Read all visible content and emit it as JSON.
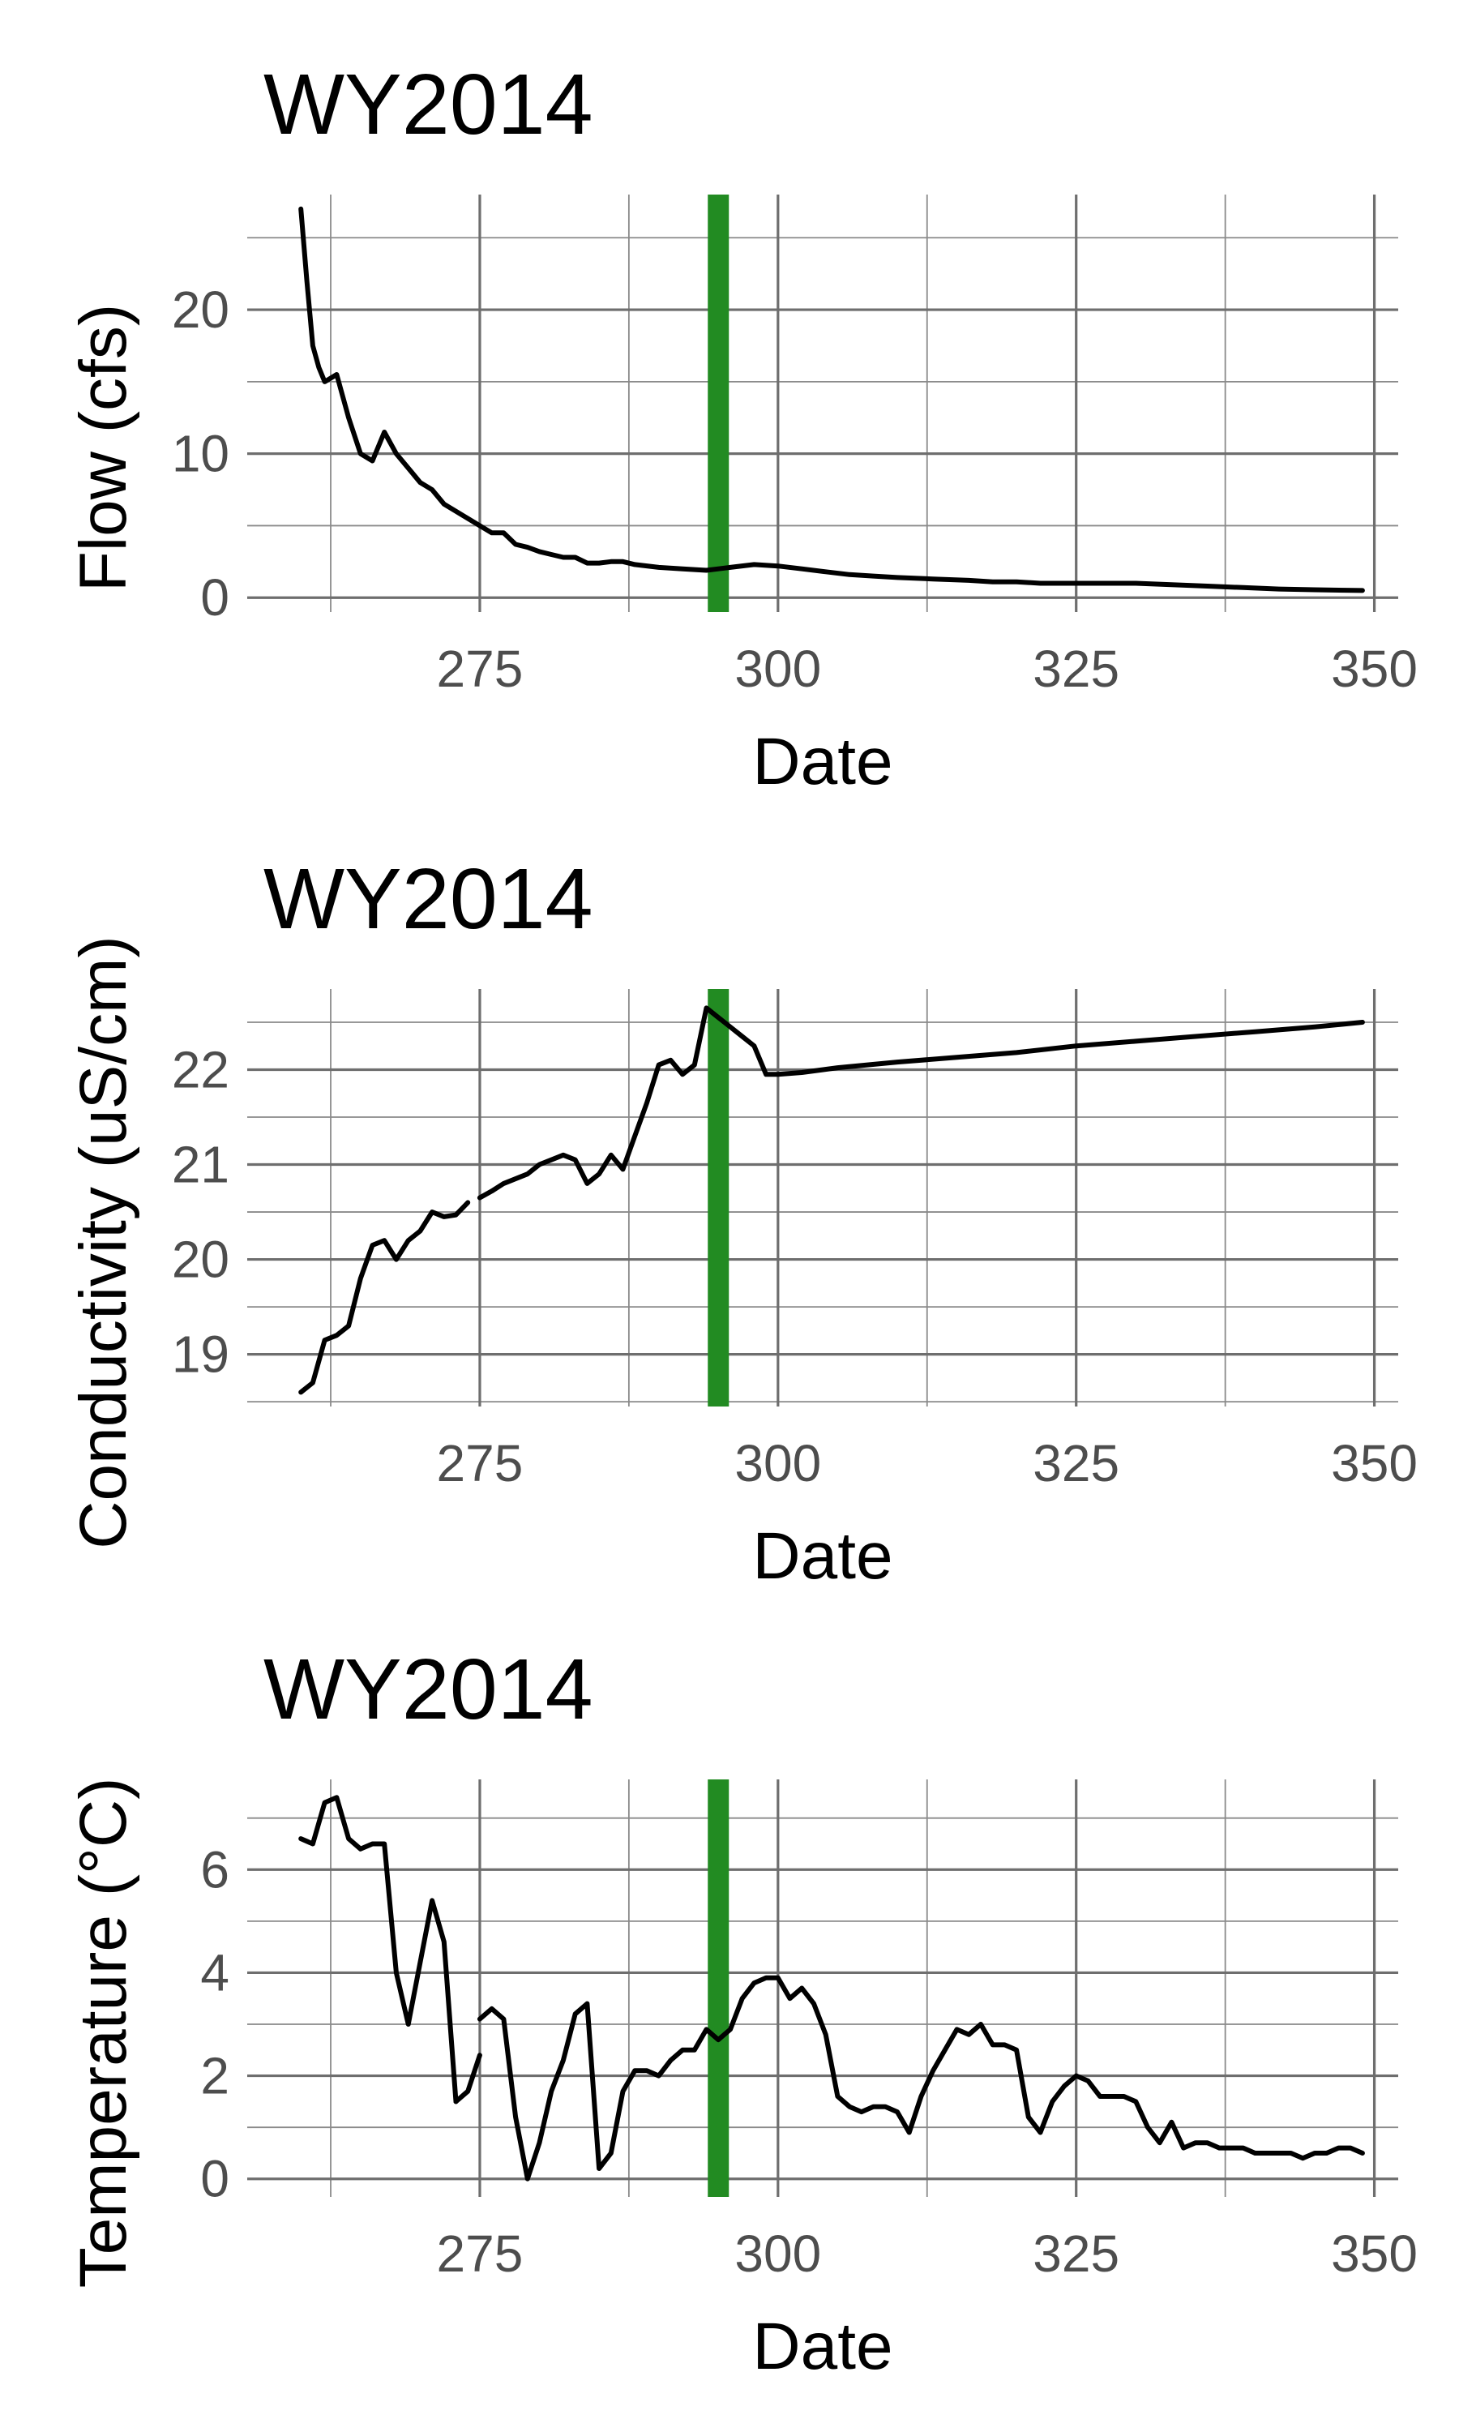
{
  "chart_data": [
    {
      "type": "line",
      "title": "WY2014",
      "xlabel": "Date",
      "ylabel": "Flow (cfs)",
      "xlim": [
        255.5,
        352
      ],
      "ylim": [
        -1,
        28
      ],
      "xticks": [
        275,
        300,
        325,
        350
      ],
      "yticks": [
        0,
        10,
        20
      ],
      "grid": true,
      "highlight": {
        "x": 295,
        "color": "#228B22"
      },
      "line_color": "#000000",
      "series": [
        {
          "segments": [
            {
              "x": [
                260,
                260.5,
                261,
                261.5,
                262,
                263,
                264,
                265,
                266,
                267,
                268,
                269,
                270,
                271,
                272,
                273,
                274,
                275,
                276,
                277,
                278,
                279,
                280,
                281,
                282,
                283,
                284,
                285,
                286,
                287,
                288,
                290,
                292,
                294,
                296,
                298,
                300,
                302,
                304,
                306,
                308,
                310,
                313,
                316,
                318,
                320,
                322,
                325,
                328,
                330,
                333,
                336,
                339,
                342,
                345,
                349
              ],
              "y": [
                27,
                22,
                17.5,
                16,
                15,
                15.5,
                12.5,
                10,
                9.5,
                11.5,
                10,
                9,
                8,
                7.5,
                6.5,
                6,
                5.5,
                5,
                4.5,
                4.5,
                3.7,
                3.5,
                3.2,
                3,
                2.8,
                2.8,
                2.4,
                2.4,
                2.5,
                2.5,
                2.3,
                2.1,
                2,
                1.9,
                2.1,
                2.3,
                2.2,
                2,
                1.8,
                1.6,
                1.5,
                1.4,
                1.3,
                1.2,
                1.1,
                1.1,
                1.0,
                1.0,
                1.0,
                1.0,
                0.9,
                0.8,
                0.7,
                0.6,
                0.55,
                0.5
              ]
            }
          ]
        }
      ]
    },
    {
      "type": "line",
      "title": "WY2014",
      "xlabel": "Date",
      "ylabel": "Conductivity (uS/cm)",
      "xlim": [
        255.5,
        352
      ],
      "ylim": [
        18.45,
        22.85
      ],
      "xticks": [
        275,
        300,
        325,
        350
      ],
      "yticks": [
        19,
        20,
        21,
        22
      ],
      "grid": true,
      "highlight": {
        "x": 295,
        "color": "#228B22"
      },
      "line_color": "#000000",
      "series": [
        {
          "segments": [
            {
              "x": [
                260,
                261,
                262,
                263,
                264,
                265,
                266,
                267,
                268,
                269,
                270,
                271,
                272,
                273,
                274
              ],
              "y": [
                18.6,
                18.7,
                19.15,
                19.2,
                19.3,
                19.8,
                20.15,
                20.2,
                20.0,
                20.2,
                20.3,
                20.5,
                20.45,
                20.47,
                20.6
              ]
            },
            {
              "x": [
                275,
                276,
                277,
                278,
                279,
                280,
                281,
                282,
                283,
                284,
                285,
                286,
                287,
                288,
                289,
                290,
                291,
                292,
                293,
                294,
                295,
                296,
                297,
                298,
                299,
                300,
                302,
                305,
                310,
                315,
                320,
                325,
                330,
                335,
                340,
                345,
                349
              ],
              "y": [
                20.65,
                20.72,
                20.8,
                20.85,
                20.9,
                21.0,
                21.05,
                21.1,
                21.05,
                20.8,
                20.9,
                21.1,
                20.95,
                21.3,
                21.65,
                22.05,
                22.1,
                21.95,
                22.05,
                22.65,
                22.55,
                22.45,
                22.35,
                22.25,
                21.95,
                21.95,
                21.97,
                22.02,
                22.08,
                22.13,
                22.18,
                22.25,
                22.3,
                22.35,
                22.4,
                22.45,
                22.5
              ]
            }
          ]
        }
      ]
    },
    {
      "type": "line",
      "title": "WY2014",
      "xlabel": "Date",
      "ylabel": "Temperature (°C)",
      "xlim": [
        255.5,
        352
      ],
      "ylim": [
        -0.35,
        7.75
      ],
      "xticks": [
        275,
        300,
        325,
        350
      ],
      "yticks": [
        0,
        2,
        4,
        6
      ],
      "grid": true,
      "highlight": {
        "x": 295,
        "color": "#228B22"
      },
      "line_color": "#000000",
      "series": [
        {
          "segments": [
            {
              "x": [
                260,
                261,
                262,
                263,
                264,
                265,
                266,
                267,
                268,
                269,
                270,
                271,
                272,
                273
              ],
              "y": [
                6.6,
                6.5,
                7.3,
                7.4,
                6.6,
                6.4,
                6.5,
                6.5,
                4.0,
                3.0,
                4.2,
                5.4,
                4.6,
                1.5
              ]
            },
            {
              "x": [
                273,
                274,
                275
              ],
              "y": [
                1.5,
                1.7,
                2.4
              ]
            },
            {
              "x": [
                275,
                276,
                277,
                278,
                279,
                280,
                281,
                282,
                283,
                284,
                285,
                286,
                287,
                288,
                289,
                290,
                291,
                292,
                293,
                294,
                295,
                296,
                297,
                298,
                299,
                300,
                301,
                302,
                303,
                304,
                305,
                306,
                307,
                308,
                309,
                310,
                311,
                312,
                313,
                314,
                315,
                316,
                317,
                318,
                319,
                320,
                321,
                322,
                323,
                324,
                325,
                326,
                327,
                328,
                329,
                330,
                331,
                332,
                333,
                334,
                335,
                336,
                337,
                338,
                339,
                340,
                341,
                342,
                343,
                344,
                345,
                346,
                347,
                348,
                349
              ],
              "y": [
                3.1,
                3.3,
                3.1,
                1.2,
                0.0,
                0.7,
                1.7,
                2.3,
                3.2,
                3.4,
                0.2,
                0.5,
                1.7,
                2.1,
                2.1,
                2.0,
                2.3,
                2.5,
                2.5,
                2.9,
                2.7,
                2.9,
                3.5,
                3.8,
                3.9,
                3.9,
                3.5,
                3.7,
                3.4,
                2.8,
                1.6,
                1.4,
                1.3,
                1.4,
                1.4,
                1.3,
                0.9,
                1.6,
                2.1,
                2.5,
                2.9,
                2.8,
                3.0,
                2.6,
                2.6,
                2.5,
                1.2,
                0.9,
                1.5,
                1.8,
                2.0,
                1.9,
                1.6,
                1.6,
                1.6,
                1.5,
                1.0,
                0.7,
                1.1,
                0.6,
                0.7,
                0.7,
                0.6,
                0.6,
                0.6,
                0.5,
                0.5,
                0.5,
                0.5,
                0.4,
                0.5,
                0.5,
                0.6,
                0.6,
                0.5
              ]
            }
          ]
        }
      ]
    }
  ]
}
